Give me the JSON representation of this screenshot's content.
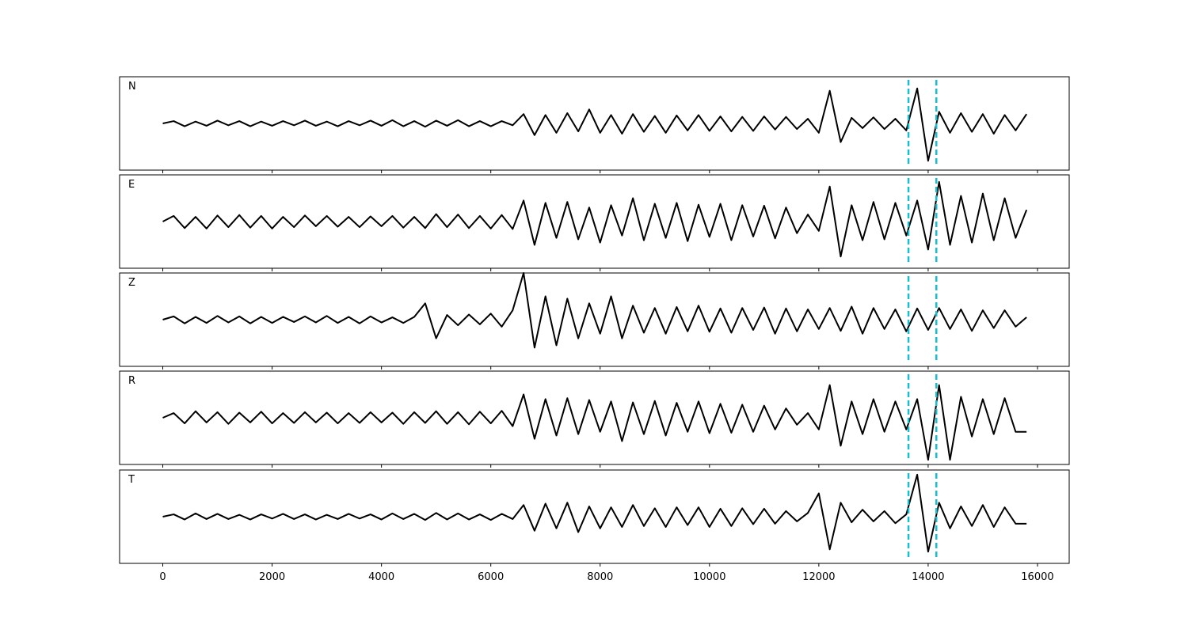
{
  "chart_data": {
    "type": "line",
    "x": [
      0,
      200,
      400,
      600,
      800,
      1000,
      1200,
      1400,
      1600,
      1800,
      2000,
      2200,
      2400,
      2600,
      2800,
      3000,
      3200,
      3400,
      3600,
      3800,
      4000,
      4200,
      4400,
      4600,
      4800,
      5000,
      5200,
      5400,
      5600,
      5800,
      6000,
      6200,
      6400,
      6600,
      6800,
      7000,
      7200,
      7400,
      7600,
      7800,
      8000,
      8200,
      8400,
      8600,
      8800,
      9000,
      9200,
      9400,
      9600,
      9800,
      10000,
      10200,
      10400,
      10600,
      10800,
      11000,
      11200,
      11400,
      11600,
      11800,
      12000,
      12200,
      12400,
      12600,
      12800,
      13000,
      13200,
      13400,
      13600,
      13800,
      14000,
      14200,
      14400,
      14600,
      14800,
      15000,
      15200,
      15400,
      15600,
      15800
    ],
    "xlim": [
      -790,
      16580
    ],
    "xticks": [
      0,
      2000,
      4000,
      6000,
      8000,
      10000,
      12000,
      14000,
      16000
    ],
    "ylim": [
      -1,
      1
    ],
    "color": "#000000",
    "vlines": [
      13640,
      14150
    ],
    "vline_color": "#17becf",
    "series": [
      {
        "name": "N",
        "values": [
          0,
          0.05,
          -0.06,
          0.04,
          -0.05,
          0.06,
          -0.04,
          0.05,
          -0.06,
          0.04,
          -0.05,
          0.05,
          -0.04,
          0.06,
          -0.05,
          0.04,
          -0.06,
          0.05,
          -0.04,
          0.06,
          -0.05,
          0.07,
          -0.06,
          0.05,
          -0.07,
          0.06,
          -0.05,
          0.07,
          -0.06,
          0.05,
          -0.06,
          0.05,
          -0.04,
          0.2,
          -0.25,
          0.18,
          -0.2,
          0.22,
          -0.17,
          0.3,
          -0.2,
          0.18,
          -0.22,
          0.2,
          -0.18,
          0.16,
          -0.2,
          0.17,
          -0.15,
          0.18,
          -0.16,
          0.15,
          -0.17,
          0.14,
          -0.16,
          0.15,
          -0.13,
          0.14,
          -0.12,
          0.1,
          -0.2,
          0.7,
          -0.4,
          0.12,
          -0.1,
          0.13,
          -0.12,
          0.1,
          -0.15,
          0.75,
          -0.8,
          0.25,
          -0.2,
          0.22,
          -0.18,
          0.2,
          -0.22,
          0.18,
          -0.15,
          0.2
        ]
      },
      {
        "name": "E",
        "values": [
          0,
          0.12,
          -0.14,
          0.1,
          -0.15,
          0.13,
          -0.12,
          0.14,
          -0.13,
          0.12,
          -0.15,
          0.1,
          -0.12,
          0.13,
          -0.1,
          0.12,
          -0.11,
          0.1,
          -0.12,
          0.11,
          -0.1,
          0.12,
          -0.13,
          0.1,
          -0.14,
          0.16,
          -0.12,
          0.15,
          -0.14,
          0.12,
          -0.15,
          0.14,
          -0.16,
          0.45,
          -0.5,
          0.4,
          -0.35,
          0.42,
          -0.38,
          0.3,
          -0.45,
          0.35,
          -0.3,
          0.5,
          -0.4,
          0.38,
          -0.35,
          0.4,
          -0.42,
          0.36,
          -0.33,
          0.38,
          -0.4,
          0.35,
          -0.32,
          0.34,
          -0.36,
          0.3,
          -0.25,
          0.15,
          -0.2,
          0.75,
          -0.75,
          0.35,
          -0.4,
          0.42,
          -0.38,
          0.4,
          -0.3,
          0.45,
          -0.6,
          0.85,
          -0.5,
          0.55,
          -0.45,
          0.6,
          -0.4,
          0.5,
          -0.35,
          0.25
        ]
      },
      {
        "name": "Z",
        "values": [
          0,
          0.07,
          -0.08,
          0.06,
          -0.07,
          0.08,
          -0.06,
          0.07,
          -0.08,
          0.06,
          -0.07,
          0.06,
          -0.05,
          0.07,
          -0.06,
          0.08,
          -0.07,
          0.06,
          -0.08,
          0.07,
          -0.06,
          0.05,
          -0.07,
          0.06,
          0.35,
          -0.4,
          0.1,
          -0.12,
          0.11,
          -0.1,
          0.13,
          -0.15,
          0.2,
          1.0,
          -0.6,
          0.5,
          -0.55,
          0.45,
          -0.4,
          0.35,
          -0.3,
          0.5,
          -0.4,
          0.3,
          -0.28,
          0.25,
          -0.3,
          0.27,
          -0.25,
          0.3,
          -0.26,
          0.24,
          -0.28,
          0.25,
          -0.22,
          0.26,
          -0.3,
          0.24,
          -0.25,
          0.22,
          -0.2,
          0.25,
          -0.24,
          0.28,
          -0.3,
          0.25,
          -0.2,
          0.22,
          -0.25,
          0.24,
          -0.22,
          0.25,
          -0.2,
          0.22,
          -0.24,
          0.2,
          -0.18,
          0.2,
          -0.15,
          0.05
        ]
      },
      {
        "name": "R",
        "values": [
          0,
          0.1,
          -0.12,
          0.14,
          -0.1,
          0.12,
          -0.13,
          0.11,
          -0.1,
          0.13,
          -0.12,
          0.1,
          -0.11,
          0.12,
          -0.1,
          0.11,
          -0.12,
          0.1,
          -0.11,
          0.12,
          -0.1,
          0.11,
          -0.13,
          0.12,
          -0.11,
          0.14,
          -0.13,
          0.12,
          -0.14,
          0.13,
          -0.12,
          0.15,
          -0.18,
          0.5,
          -0.45,
          0.4,
          -0.38,
          0.42,
          -0.35,
          0.38,
          -0.3,
          0.35,
          -0.5,
          0.33,
          -0.35,
          0.36,
          -0.38,
          0.32,
          -0.3,
          0.35,
          -0.33,
          0.3,
          -0.32,
          0.28,
          -0.3,
          0.26,
          -0.25,
          0.2,
          -0.15,
          0.1,
          -0.25,
          0.7,
          -0.6,
          0.35,
          -0.35,
          0.4,
          -0.3,
          0.35,
          -0.25,
          0.4,
          -0.9,
          0.7,
          -0.9,
          0.45,
          -0.4,
          0.4,
          -0.35,
          0.42,
          -0.3,
          -0.3
        ]
      },
      {
        "name": "T",
        "values": [
          0,
          0.05,
          -0.06,
          0.07,
          -0.05,
          0.06,
          -0.05,
          0.04,
          -0.06,
          0.05,
          -0.04,
          0.06,
          -0.05,
          0.05,
          -0.06,
          0.04,
          -0.05,
          0.06,
          -0.04,
          0.05,
          -0.06,
          0.07,
          -0.05,
          0.06,
          -0.07,
          0.08,
          -0.06,
          0.07,
          -0.06,
          0.05,
          -0.07,
          0.06,
          -0.05,
          0.25,
          -0.3,
          0.28,
          -0.25,
          0.3,
          -0.33,
          0.22,
          -0.25,
          0.2,
          -0.22,
          0.25,
          -0.2,
          0.18,
          -0.22,
          0.2,
          -0.18,
          0.2,
          -0.22,
          0.17,
          -0.2,
          0.18,
          -0.16,
          0.17,
          -0.15,
          0.12,
          -0.1,
          0.08,
          0.5,
          -0.7,
          0.3,
          -0.12,
          0.15,
          -0.1,
          0.12,
          -0.14,
          0.05,
          0.9,
          -0.75,
          0.3,
          -0.25,
          0.22,
          -0.2,
          0.25,
          -0.22,
          0.2,
          -0.15,
          -0.15
        ]
      }
    ]
  }
}
